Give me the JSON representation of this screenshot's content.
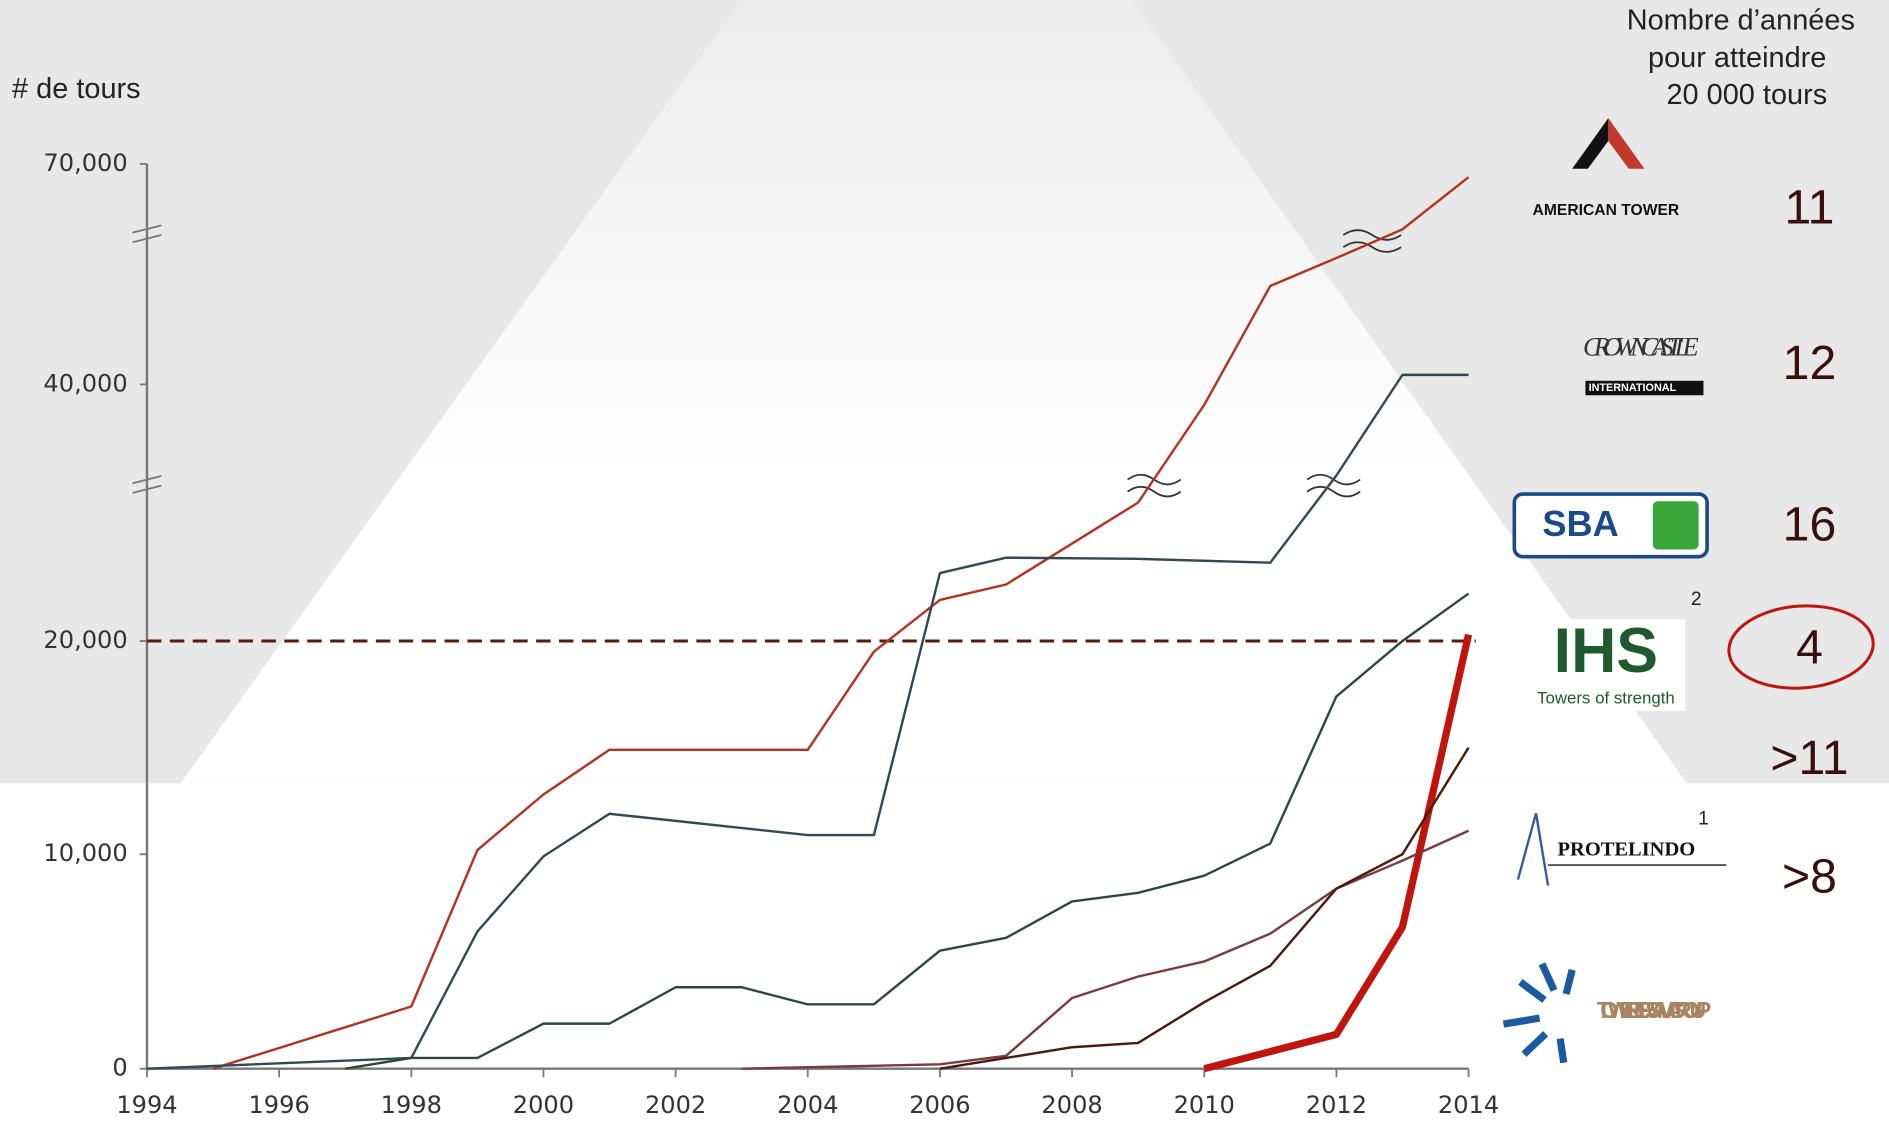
{
  "chart_data": {
    "type": "line",
    "ylabel": "# de tours",
    "annotation_title": [
      "Nombre d’années",
      "pour atteindre",
      "20 000 tours"
    ],
    "xlim": [
      1994,
      2014
    ],
    "xticks": [
      1994,
      1996,
      1998,
      2000,
      2002,
      2004,
      2006,
      2008,
      2010,
      2012,
      2014
    ],
    "ylim": [
      0,
      70000
    ],
    "yticks": [
      0,
      {
        "value": 10000,
        "label": "10,000"
      },
      {
        "value": 20000,
        "label": "20,000"
      },
      {
        "value": 40000,
        "label": "40,000"
      },
      {
        "value": 70000,
        "label": "70,000"
      }
    ],
    "reference_line": {
      "value": 20000,
      "color": "#5a1a0a"
    },
    "series": [
      {
        "name": "AMERICAN TOWER",
        "color": "#b5321e",
        "width": 2,
        "years": "11",
        "x": [
          1995,
          1998,
          1999,
          2000,
          2001,
          2004,
          2005,
          2006,
          2007,
          2008,
          2009,
          2010,
          2011,
          2012,
          2013,
          2014
        ],
        "values": [
          0,
          2900,
          10200,
          12800,
          14900,
          14900,
          19500,
          23200,
          24400,
          27600,
          30800,
          38400,
          53400,
          57200,
          61100,
          68200
        ]
      },
      {
        "name": "CROWN CASTLE",
        "subname": "INTERNATIONAL",
        "color": "#2e4a55",
        "width": 2,
        "years": "12",
        "x": [
          1994,
          1998,
          1999,
          2000,
          2001,
          2004,
          2005,
          2006,
          2007,
          2009,
          2011,
          2012,
          2013,
          2014
        ],
        "values": [
          0,
          500,
          6400,
          9900,
          11900,
          10900,
          10900,
          25300,
          26500,
          26400,
          26100,
          32900,
          41300,
          41300
        ]
      },
      {
        "name": "SBA",
        "color": "#2c4a3c",
        "width": 2,
        "years": "16",
        "x": [
          1997,
          1998,
          1999,
          2000,
          2001,
          2002,
          2003,
          2004,
          2005,
          2006,
          2007,
          2008,
          2009,
          2010,
          2011,
          2012,
          2013,
          2014
        ],
        "values": [
          0,
          500,
          500,
          2100,
          2100,
          3800,
          3800,
          3000,
          3000,
          5500,
          6100,
          7800,
          8200,
          9000,
          10500,
          17400,
          20000,
          23700
        ]
      },
      {
        "name": "IHS",
        "subname": "Towers of strength",
        "note": "2",
        "color": "#c0140c",
        "width": 6,
        "years": "4",
        "x": [
          2010,
          2011,
          2012,
          2013,
          2014
        ],
        "values": [
          0,
          800,
          1600,
          6600,
          20500
        ]
      },
      {
        "name": "PROTELINDO",
        "note": "1",
        "color": "#7a3a40",
        "width": 2,
        "years": ">11",
        "x": [
          2003,
          2006,
          2007,
          2008,
          2009,
          2010,
          2011,
          2012,
          2013,
          2014
        ],
        "values": [
          0,
          200,
          600,
          3300,
          4300,
          5000,
          6300,
          8400,
          9700,
          11100
        ]
      },
      {
        "name": "TOWER BERSAMA GROUP",
        "color": "#4a1a0a",
        "width": 2,
        "years": ">8",
        "x": [
          2006,
          2007,
          2008,
          2009,
          2010,
          2011,
          2012,
          2013,
          2014
        ],
        "values": [
          0,
          500,
          1000,
          1200,
          3100,
          4800,
          8400,
          10000,
          15000
        ]
      }
    ]
  }
}
